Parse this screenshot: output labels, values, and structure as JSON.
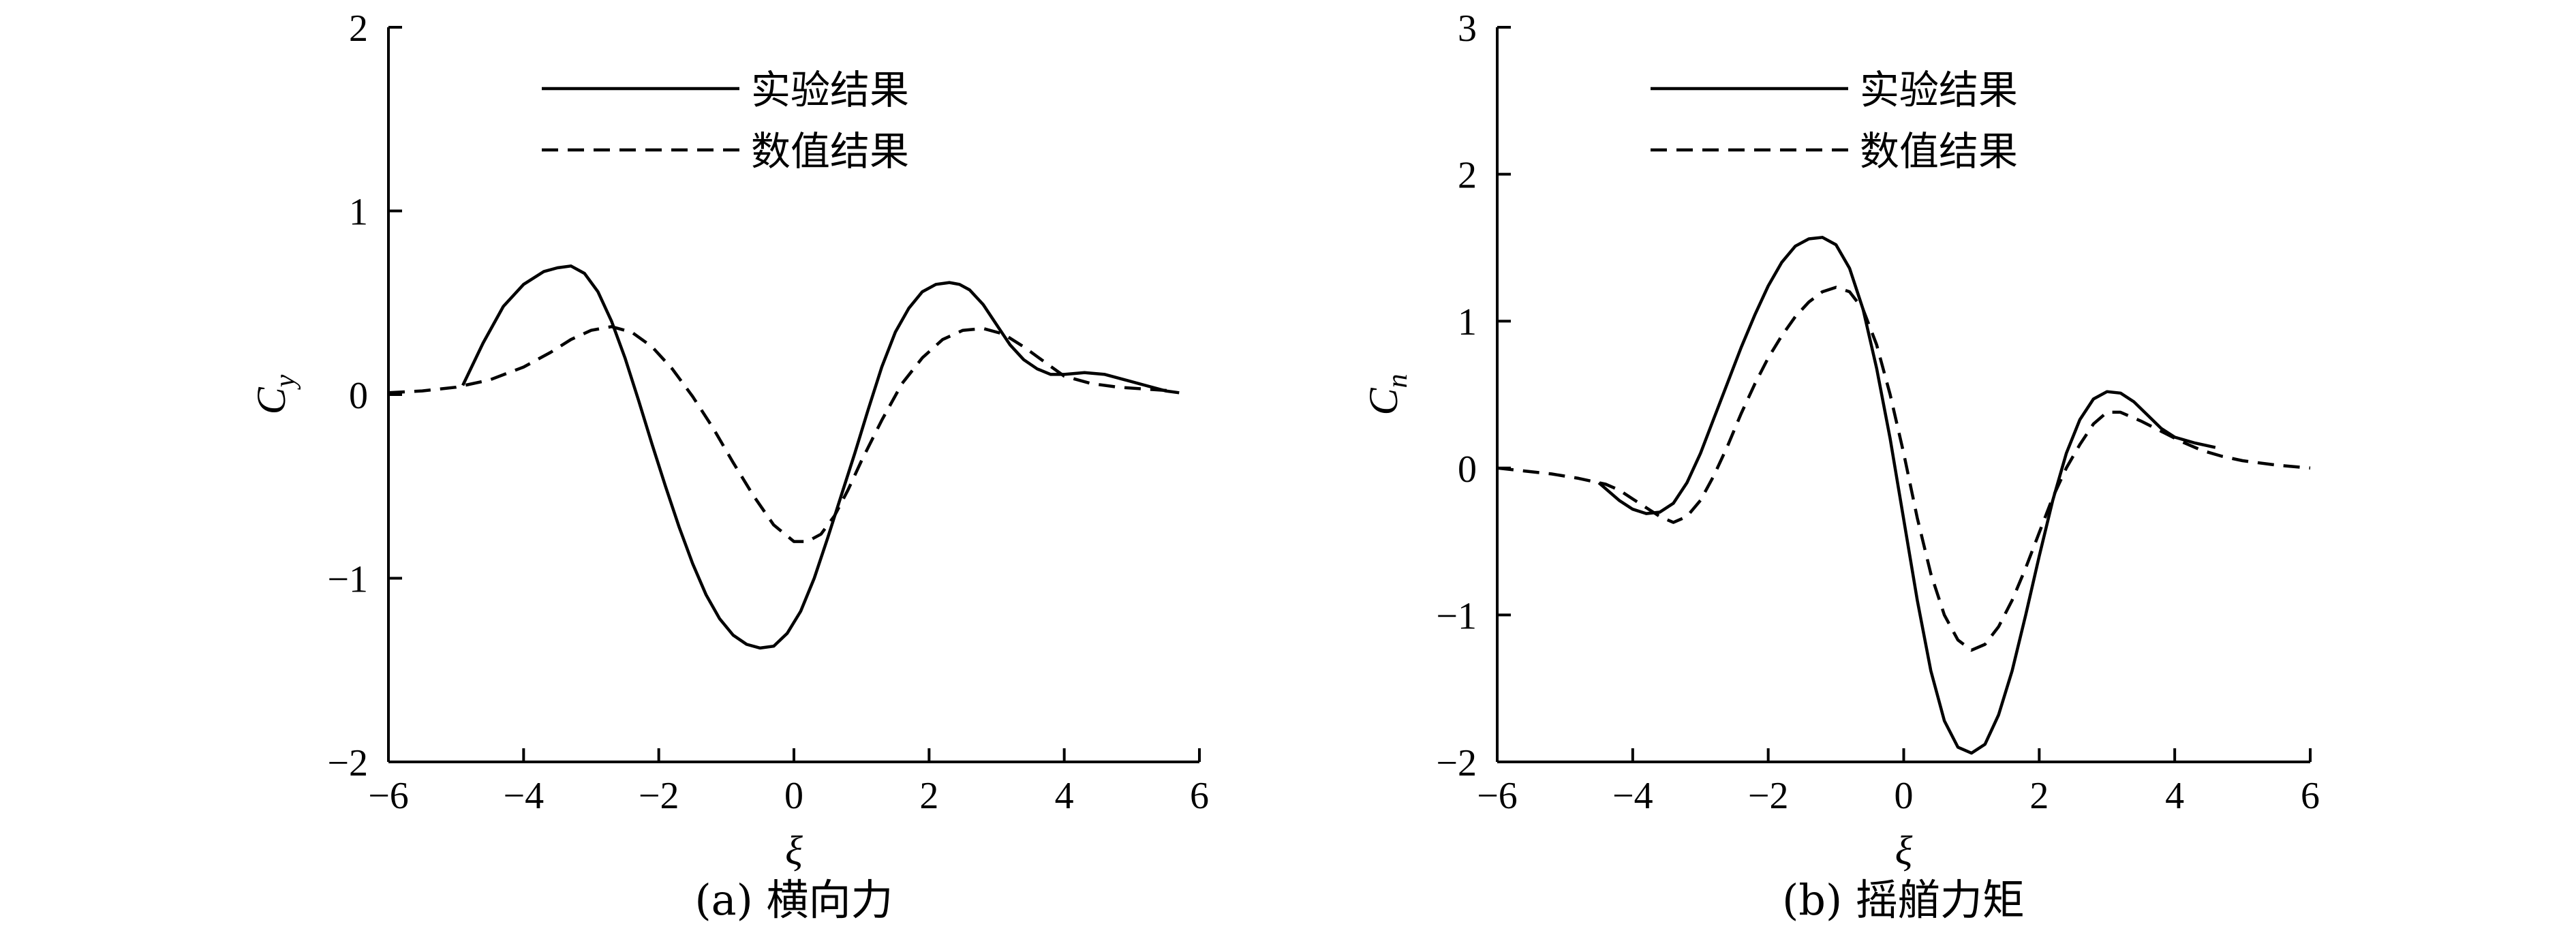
{
  "legend": {
    "experimental": "实验结果",
    "numerical": "数值结果"
  },
  "chart_data": [
    {
      "type": "line",
      "caption": "(a) 横向力",
      "xlabel": "ξ",
      "ylabel": "C",
      "ylabel_sub": "y",
      "xlim": [
        -6,
        6
      ],
      "ylim": [
        -2,
        2
      ],
      "xticks": [
        -6,
        -4,
        -2,
        0,
        2,
        4,
        6
      ],
      "yticks": [
        -2,
        -1,
        0,
        1,
        2
      ],
      "xtick_labels": [
        "−6",
        "−4",
        "−2",
        "0",
        "2",
        "4",
        "6"
      ],
      "ytick_labels": [
        "−2",
        "−1",
        "0",
        "1",
        "2"
      ],
      "grid": false,
      "legend_position": "top-center",
      "series": [
        {
          "name": "实验结果",
          "style": "solid",
          "x": [
            -4.9,
            -4.6,
            -4.3,
            -4.0,
            -3.7,
            -3.5,
            -3.3,
            -3.1,
            -2.9,
            -2.7,
            -2.5,
            -2.3,
            -2.1,
            -1.9,
            -1.7,
            -1.5,
            -1.3,
            -1.1,
            -0.9,
            -0.7,
            -0.5,
            -0.3,
            -0.1,
            0.1,
            0.3,
            0.5,
            0.7,
            0.9,
            1.1,
            1.3,
            1.5,
            1.7,
            1.9,
            2.1,
            2.3,
            2.45,
            2.6,
            2.8,
            3.0,
            3.2,
            3.4,
            3.6,
            3.8,
            4.0,
            4.3,
            4.6,
            4.9,
            5.2,
            5.5,
            5.7
          ],
          "y": [
            0.05,
            0.28,
            0.48,
            0.6,
            0.67,
            0.69,
            0.7,
            0.66,
            0.56,
            0.4,
            0.2,
            -0.03,
            -0.27,
            -0.5,
            -0.72,
            -0.92,
            -1.09,
            -1.22,
            -1.31,
            -1.36,
            -1.38,
            -1.37,
            -1.3,
            -1.18,
            -1.0,
            -0.78,
            -0.55,
            -0.32,
            -0.08,
            0.15,
            0.34,
            0.47,
            0.56,
            0.6,
            0.61,
            0.6,
            0.57,
            0.49,
            0.38,
            0.27,
            0.19,
            0.14,
            0.11,
            0.11,
            0.12,
            0.11,
            0.08,
            0.05,
            0.02,
            0.01
          ]
        },
        {
          "name": "数值结果",
          "style": "dashed",
          "x": [
            -6.0,
            -5.5,
            -5.0,
            -4.5,
            -4.0,
            -3.6,
            -3.3,
            -3.0,
            -2.7,
            -2.4,
            -2.1,
            -1.8,
            -1.5,
            -1.2,
            -0.9,
            -0.6,
            -0.3,
            0.0,
            0.2,
            0.4,
            0.6,
            0.8,
            1.0,
            1.3,
            1.6,
            1.9,
            2.2,
            2.5,
            2.8,
            3.1,
            3.4,
            3.7,
            4.0,
            4.4,
            4.8,
            5.2,
            5.6
          ],
          "y": [
            0.01,
            0.02,
            0.04,
            0.08,
            0.15,
            0.23,
            0.3,
            0.35,
            0.37,
            0.34,
            0.26,
            0.14,
            -0.01,
            -0.18,
            -0.37,
            -0.55,
            -0.71,
            -0.8,
            -0.8,
            -0.76,
            -0.66,
            -0.52,
            -0.36,
            -0.14,
            0.06,
            0.2,
            0.3,
            0.35,
            0.36,
            0.33,
            0.26,
            0.18,
            0.1,
            0.06,
            0.04,
            0.03,
            0.02
          ]
        }
      ]
    },
    {
      "type": "line",
      "caption": "(b) 摇艏力矩",
      "xlabel": "ξ",
      "ylabel": "C",
      "ylabel_sub": "n",
      "xlim": [
        -6,
        6
      ],
      "ylim": [
        -2,
        3
      ],
      "xticks": [
        -6,
        -4,
        -2,
        0,
        2,
        4,
        6
      ],
      "yticks": [
        -2,
        -1,
        0,
        1,
        2,
        3
      ],
      "xtick_labels": [
        "−6",
        "−4",
        "−2",
        "0",
        "2",
        "4",
        "6"
      ],
      "ytick_labels": [
        "−2",
        "−1",
        "0",
        "1",
        "2",
        "3"
      ],
      "grid": false,
      "legend_position": "top-center",
      "series": [
        {
          "name": "实验结果",
          "style": "solid",
          "x": [
            -4.5,
            -4.2,
            -4.0,
            -3.8,
            -3.6,
            -3.4,
            -3.2,
            -3.0,
            -2.8,
            -2.6,
            -2.4,
            -2.2,
            -2.0,
            -1.8,
            -1.6,
            -1.4,
            -1.2,
            -1.0,
            -0.8,
            -0.6,
            -0.4,
            -0.2,
            0.0,
            0.2,
            0.4,
            0.6,
            0.8,
            1.0,
            1.2,
            1.4,
            1.6,
            1.8,
            2.0,
            2.2,
            2.4,
            2.6,
            2.8,
            3.0,
            3.2,
            3.4,
            3.6,
            3.8,
            4.0,
            4.3,
            4.6
          ],
          "y": [
            -0.1,
            -0.22,
            -0.28,
            -0.31,
            -0.3,
            -0.24,
            -0.1,
            0.1,
            0.34,
            0.58,
            0.82,
            1.04,
            1.24,
            1.4,
            1.51,
            1.56,
            1.57,
            1.52,
            1.36,
            1.08,
            0.68,
            0.2,
            -0.35,
            -0.9,
            -1.38,
            -1.72,
            -1.9,
            -1.94,
            -1.88,
            -1.68,
            -1.38,
            -1.0,
            -0.6,
            -0.22,
            0.1,
            0.33,
            0.47,
            0.52,
            0.51,
            0.45,
            0.36,
            0.27,
            0.21,
            0.17,
            0.14
          ]
        },
        {
          "name": "数值结果",
          "style": "dashed",
          "x": [
            -6.0,
            -5.6,
            -5.2,
            -4.8,
            -4.4,
            -4.2,
            -4.0,
            -3.8,
            -3.6,
            -3.4,
            -3.2,
            -3.0,
            -2.8,
            -2.6,
            -2.4,
            -2.2,
            -2.0,
            -1.8,
            -1.6,
            -1.4,
            -1.2,
            -1.0,
            -0.8,
            -0.6,
            -0.4,
            -0.2,
            0.0,
            0.2,
            0.4,
            0.6,
            0.8,
            1.0,
            1.2,
            1.4,
            1.6,
            1.8,
            2.0,
            2.2,
            2.4,
            2.6,
            2.8,
            3.0,
            3.2,
            3.5,
            3.8,
            4.1,
            4.4,
            4.7,
            5.0,
            5.5,
            6.0
          ],
          "y": [
            0.0,
            -0.02,
            -0.04,
            -0.07,
            -0.11,
            -0.15,
            -0.21,
            -0.27,
            -0.33,
            -0.37,
            -0.33,
            -0.22,
            -0.05,
            0.15,
            0.37,
            0.57,
            0.75,
            0.9,
            1.03,
            1.13,
            1.2,
            1.23,
            1.2,
            1.08,
            0.84,
            0.5,
            0.1,
            -0.34,
            -0.72,
            -1.0,
            -1.17,
            -1.24,
            -1.2,
            -1.08,
            -0.9,
            -0.68,
            -0.44,
            -0.2,
            0.0,
            0.16,
            0.3,
            0.38,
            0.38,
            0.32,
            0.25,
            0.18,
            0.12,
            0.08,
            0.05,
            0.02,
            0.0
          ]
        }
      ]
    }
  ]
}
